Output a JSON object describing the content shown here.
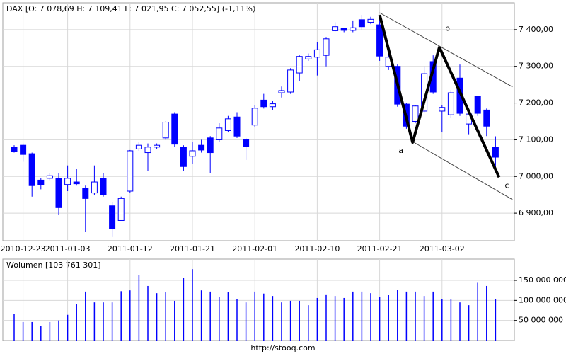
{
  "chart_data": {
    "type": "candlestick",
    "title": "DAX [O: 7 078,69  H: 7 109,41  L: 7 021,95  C: 7 052,55] (-1,11%)",
    "source": "http://stooq.com",
    "categories": [
      null,
      "2010-12-23",
      null,
      null,
      null,
      null,
      "2011-01-03",
      null,
      null,
      null,
      null,
      null,
      null,
      "2011-01-12",
      null,
      null,
      null,
      null,
      null,
      null,
      "2011-01-21",
      null,
      null,
      null,
      null,
      null,
      null,
      "2011-02-01",
      null,
      null,
      null,
      null,
      null,
      null,
      "2011-02-10",
      null,
      null,
      null,
      null,
      null,
      null,
      "2011-02-21",
      null,
      null,
      null,
      null,
      null,
      null,
      "2011-03-02",
      null,
      null,
      null,
      null,
      null,
      null
    ],
    "open": [
      7080,
      7085,
      7062,
      6990,
      6995,
      6995,
      6978,
      6985,
      6968,
      6955,
      6995,
      6920,
      6880,
      6960,
      7075,
      7065,
      7080,
      7105,
      7170,
      7080,
      7055,
      7085,
      7105,
      7100,
      7125,
      7162,
      7100,
      7140,
      7208,
      7190,
      7228,
      7230,
      7282,
      7320,
      7325,
      7330,
      7397,
      7403,
      7398,
      7427,
      7420,
      7413,
      7300,
      7300,
      7197,
      7150,
      7178,
      7313,
      7178,
      7168,
      7268,
      7143,
      7218,
      7181,
      7078.69
    ],
    "high": [
      7085,
      7090,
      7065,
      6995,
      7010,
      7010,
      7030,
      7020,
      6975,
      7030,
      7010,
      6930,
      6945,
      7072,
      7095,
      7090,
      7090,
      7150,
      7175,
      7085,
      7095,
      7100,
      7110,
      7145,
      7165,
      7175,
      7105,
      7195,
      7225,
      7205,
      7245,
      7295,
      7330,
      7335,
      7365,
      7380,
      7420,
      7405,
      7425,
      7440,
      7435,
      7435,
      7335,
      7305,
      7200,
      7195,
      7300,
      7330,
      7195,
      7235,
      7305,
      7175,
      7220,
      7185,
      7109.41
    ],
    "low": [
      7065,
      7040,
      6945,
      6965,
      6990,
      6895,
      6960,
      6975,
      6850,
      6950,
      6945,
      6835,
      6880,
      6955,
      7070,
      7015,
      7075,
      7100,
      7080,
      7015,
      7035,
      7065,
      7010,
      7095,
      7120,
      7105,
      7045,
      7135,
      7185,
      7180,
      7215,
      7225,
      7260,
      7315,
      7275,
      7300,
      7395,
      7393,
      7393,
      7400,
      7415,
      7315,
      7290,
      7190,
      7130,
      7145,
      7175,
      7225,
      7120,
      7160,
      7165,
      7115,
      7165,
      7110,
      7021.95
    ],
    "close": [
      7068,
      7060,
      6975,
      6978,
      7002,
      6915,
      6995,
      6980,
      6940,
      6985,
      6950,
      6857,
      6940,
      7070,
      7085,
      7080,
      7085,
      7148,
      7088,
      7027,
      7070,
      7072,
      7065,
      7132,
      7157,
      7110,
      7082,
      7186,
      7190,
      7198,
      7234,
      7290,
      7327,
      7327,
      7345,
      7375,
      7408,
      7398,
      7405,
      7408,
      7428,
      7328,
      7325,
      7197,
      7137,
      7192,
      7280,
      7230,
      7188,
      7228,
      7172,
      7170,
      7172,
      7137,
      7052.55
    ],
    "color": "#0000ff",
    "ylim": [
      6825,
      7473
    ],
    "yticks": [
      {
        "value": 6900,
        "label": "6 900,00"
      },
      {
        "value": 7000,
        "label": "7 000,00"
      },
      {
        "value": 7100,
        "label": "7 100,00"
      },
      {
        "value": 7200,
        "label": "7 200,00"
      },
      {
        "value": 7300,
        "label": "7 300,00"
      },
      {
        "value": 7400,
        "label": "7 400,00"
      }
    ],
    "grid": true,
    "overlays": [
      {
        "color": "#000000",
        "x": [
          41,
          44.7,
          47.7,
          54.4
        ],
        "y": [
          7440,
          7093,
          7352,
          6998
        ]
      },
      {
        "color": "#404040",
        "x": [
          41,
          55.9
        ],
        "y": [
          7446,
          7244
        ]
      },
      {
        "color": "#404040",
        "x": [
          44.7,
          55.9
        ],
        "y": [
          7095,
          6937
        ]
      }
    ],
    "annotations": [
      "a",
      "b",
      "c"
    ],
    "volume": {
      "title": "Wolumen [103 761 301]",
      "values": [
        67000000,
        46000000,
        46000000,
        37000000,
        46000000,
        50000000,
        64000000,
        90000000,
        122000000,
        95000000,
        95000000,
        95000000,
        123000000,
        125000000,
        164000000,
        136000000,
        118000000,
        120000000,
        99000000,
        157000000,
        178000000,
        125000000,
        122000000,
        108000000,
        120000000,
        103000000,
        95000000,
        122000000,
        117000000,
        111000000,
        95000000,
        99000000,
        99000000,
        88000000,
        106000000,
        115000000,
        111000000,
        106000000,
        122000000,
        122000000,
        118000000,
        108000000,
        113000000,
        127000000,
        122000000,
        122000000,
        111000000,
        122000000,
        103000000,
        103000000,
        95000000,
        88000000,
        144000000,
        136000000,
        103761301
      ],
      "ylim": [
        0,
        203000000
      ],
      "yticks": [
        {
          "value": 50000000,
          "label": "50 000 000"
        },
        {
          "value": 100000000,
          "label": "100 000 000"
        },
        {
          "value": 150000000,
          "label": "150 000 000"
        }
      ]
    }
  }
}
